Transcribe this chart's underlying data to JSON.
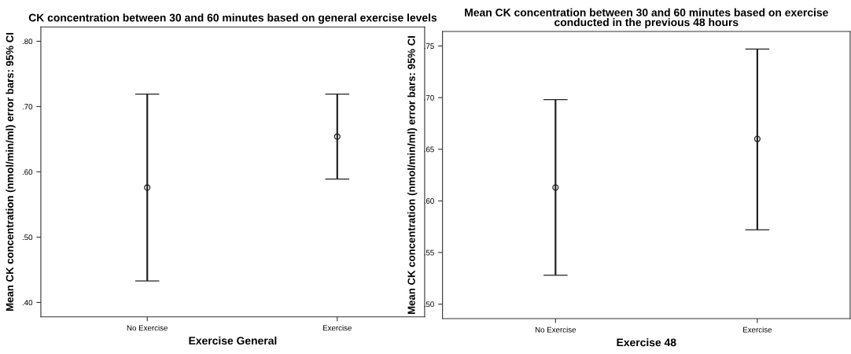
{
  "chart_data": [
    {
      "type": "scatter",
      "title": "CK concentration between 30 and 60 minutes based on general exercise levels",
      "xlabel": "Exercise General",
      "ylabel": "Mean CK concentration (nmol/min/ml) error bars: 95% CI",
      "categories": [
        "No Exercise",
        "Exercise"
      ],
      "values": [
        0.576,
        0.654
      ],
      "errors": [
        [
          0.433,
          0.719
        ],
        [
          0.589,
          0.719
        ]
      ],
      "color": "#222222",
      "marker": "circle",
      "ylim": [
        0.378,
        0.822
      ],
      "yticks": [
        {
          "value": 0.4,
          "label": ".40"
        },
        {
          "value": 0.5,
          "label": ".50"
        },
        {
          "value": 0.6,
          "label": ".60"
        },
        {
          "value": 0.7,
          "label": ".70"
        },
        {
          "value": 0.8,
          "label": ".80"
        }
      ],
      "grid": false,
      "legend": false
    },
    {
      "type": "scatter",
      "title": "Mean CK concentration between 30 and 60 minutes based on exercise\nconducted in the previous 48 hours",
      "xlabel": "Exercise 48",
      "ylabel": "Mean CK concentration (nmol/min/ml) error bars: 95% CI",
      "categories": [
        "No Exercise",
        "Exercise"
      ],
      "values": [
        0.613,
        0.66
      ],
      "errors": [
        [
          0.528,
          0.698
        ],
        [
          0.572,
          0.747
        ]
      ],
      "color": "#222222",
      "marker": "circle",
      "ylim": [
        0.486,
        0.764
      ],
      "yticks": [
        {
          "value": 0.5,
          "label": ".50"
        },
        {
          "value": 0.55,
          "label": ".55"
        },
        {
          "value": 0.6,
          "label": ".60"
        },
        {
          "value": 0.65,
          "label": ".65"
        },
        {
          "value": 0.7,
          "label": ".70"
        },
        {
          "value": 0.75,
          "label": ".75"
        }
      ],
      "grid": false,
      "legend": false
    }
  ]
}
